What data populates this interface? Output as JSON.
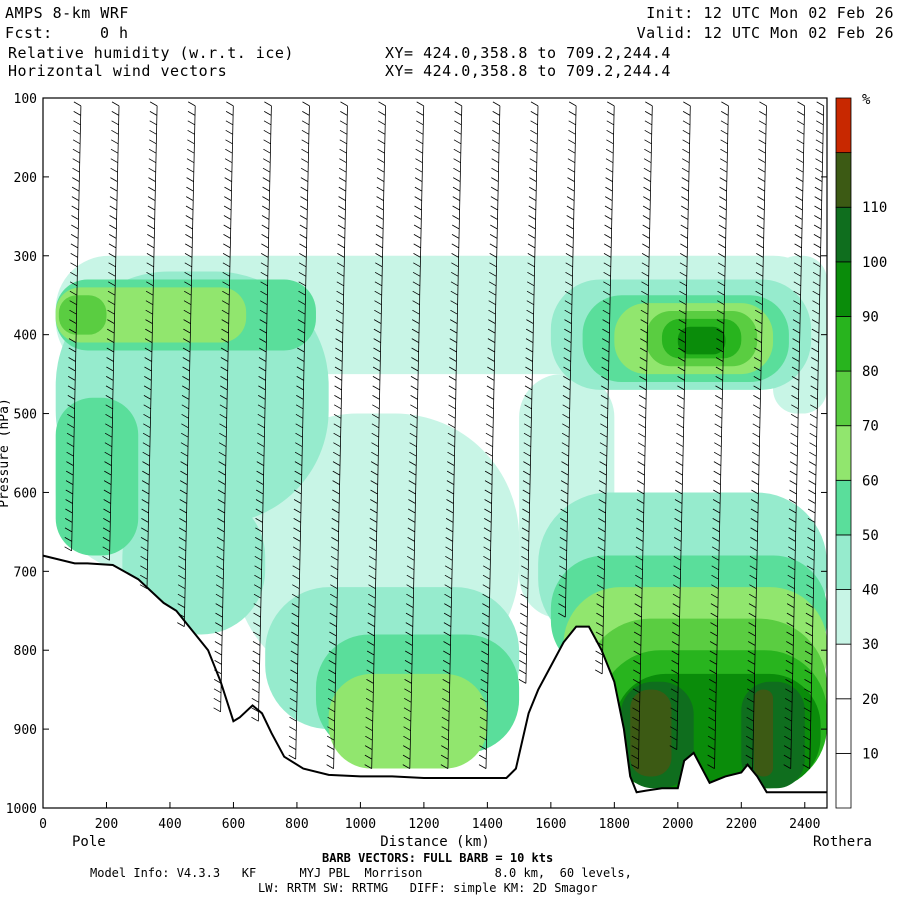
{
  "header": {
    "model": "AMPS 8-km WRF",
    "fcst_label": "Fcst:",
    "fcst_value": "0 h",
    "init": "Init: 12 UTC Mon 02 Feb 26",
    "valid": "Valid: 12 UTC Mon 02 Feb 26",
    "field1": "Relative humidity (w.r.t. ice)",
    "field2": "Horizontal wind vectors",
    "xy1": "XY= 424.0,358.8 to 709.2,244.4",
    "xy2": "XY= 424.0,358.8 to 709.2,244.4"
  },
  "footer": {
    "barb_note": "BARB VECTORS: FULL BARB = 10 kts",
    "model_info": "Model Info: V4.3.3   KF      MYJ PBL  Morrison          8.0 km,  60 levels,",
    "model_info2": "LW: RRTM SW: RRTMG   DIFF: simple KM: 2D Smagor"
  },
  "chart_data": {
    "type": "heatmap",
    "title": "Relative humidity (w.r.t. ice)",
    "xlabel": "Distance (km)",
    "ylabel": "Pressure (hPa)",
    "xlim": [
      0,
      2470
    ],
    "ylim": [
      1000,
      100
    ],
    "x_ticks": [
      "0",
      "200",
      "400",
      "600",
      "800",
      "1000",
      "1200",
      "1400",
      "1600",
      "1800",
      "2000",
      "2200",
      "2400"
    ],
    "y_ticks": [
      "100",
      "200",
      "300",
      "400",
      "500",
      "600",
      "700",
      "800",
      "900",
      "1000"
    ],
    "x_endpoints": {
      "left": "Pole",
      "right": "Rothera"
    },
    "colorbar": {
      "unit": "%",
      "levels": [
        "10",
        "20",
        "30",
        "40",
        "50",
        "60",
        "70",
        "80",
        "90",
        "100",
        "110"
      ],
      "colors": [
        "#ffffff",
        "#ffffff",
        "#ffffff",
        "#c8f5e6",
        "#96ebcd",
        "#5ade9b",
        "#91e66e",
        "#5acd41",
        "#28b41e",
        "#0a8c0a",
        "#0f6e1e",
        "#3c5a14",
        "#c82800"
      ]
    },
    "terrain": [
      [
        0,
        680
      ],
      [
        100,
        690
      ],
      [
        140,
        690
      ],
      [
        220,
        692
      ],
      [
        300,
        710
      ],
      [
        380,
        740
      ],
      [
        420,
        750
      ],
      [
        470,
        775
      ],
      [
        520,
        800
      ],
      [
        560,
        840
      ],
      [
        600,
        890
      ],
      [
        620,
        885
      ],
      [
        660,
        870
      ],
      [
        690,
        880
      ],
      [
        720,
        905
      ],
      [
        760,
        935
      ],
      [
        820,
        950
      ],
      [
        900,
        958
      ],
      [
        1000,
        960
      ],
      [
        1100,
        960
      ],
      [
        1200,
        962
      ],
      [
        1300,
        962
      ],
      [
        1400,
        962
      ],
      [
        1460,
        962
      ],
      [
        1490,
        950
      ],
      [
        1530,
        880
      ],
      [
        1560,
        850
      ],
      [
        1600,
        820
      ],
      [
        1640,
        790
      ],
      [
        1680,
        770
      ],
      [
        1720,
        770
      ],
      [
        1760,
        800
      ],
      [
        1800,
        840
      ],
      [
        1830,
        900
      ],
      [
        1850,
        960
      ],
      [
        1870,
        980
      ],
      [
        1900,
        978
      ],
      [
        1950,
        975
      ],
      [
        2000,
        975
      ],
      [
        2020,
        940
      ],
      [
        2050,
        930
      ],
      [
        2100,
        968
      ],
      [
        2150,
        960
      ],
      [
        2200,
        955
      ],
      [
        2220,
        945
      ],
      [
        2250,
        960
      ],
      [
        2280,
        980
      ],
      [
        2350,
        980
      ],
      [
        2400,
        980
      ],
      [
        2470,
        980
      ]
    ],
    "rh_bands": [
      {
        "level": 30,
        "blobs": [
          [
            40,
            300,
            2470,
            450
          ],
          [
            40,
            450,
            600,
            700
          ],
          [
            600,
            500,
            1500,
            850
          ],
          [
            1500,
            450,
            1800,
            760
          ],
          [
            2300,
            300,
            2470,
            500
          ]
        ]
      },
      {
        "level": 40,
        "blobs": [
          [
            40,
            320,
            900,
            640
          ],
          [
            250,
            600,
            700,
            780
          ],
          [
            700,
            720,
            1500,
            900
          ],
          [
            1600,
            330,
            2420,
            470
          ],
          [
            1560,
            600,
            2470,
            800
          ]
        ]
      },
      {
        "level": 50,
        "blobs": [
          [
            40,
            330,
            860,
            420
          ],
          [
            40,
            480,
            300,
            680
          ],
          [
            860,
            780,
            1500,
            930
          ],
          [
            1600,
            680,
            2470,
            830
          ],
          [
            1700,
            350,
            2350,
            460
          ]
        ]
      },
      {
        "level": 60,
        "blobs": [
          [
            40,
            340,
            640,
            410
          ],
          [
            1800,
            360,
            2300,
            450
          ],
          [
            1640,
            720,
            2470,
            880
          ],
          [
            900,
            830,
            1400,
            950
          ]
        ]
      },
      {
        "level": 70,
        "blobs": [
          [
            50,
            350,
            200,
            400
          ],
          [
            1900,
            370,
            2250,
            440
          ],
          [
            1700,
            760,
            2470,
            950
          ]
        ]
      },
      {
        "level": 80,
        "blobs": [
          [
            1950,
            380,
            2200,
            430
          ],
          [
            1750,
            800,
            2470,
            975
          ]
        ]
      },
      {
        "level": 90,
        "blobs": [
          [
            2000,
            390,
            2150,
            425
          ],
          [
            1800,
            830,
            2450,
            975
          ]
        ]
      },
      {
        "level": 100,
        "blobs": [
          [
            1820,
            840,
            2050,
            975
          ],
          [
            2200,
            840,
            2400,
            975
          ]
        ]
      },
      {
        "level": 110,
        "blobs": [
          [
            1850,
            850,
            1980,
            960
          ],
          [
            2240,
            850,
            2300,
            960
          ]
        ]
      }
    ],
    "wind_columns_km": [
      120,
      240,
      360,
      480,
      600,
      720,
      840,
      960,
      1080,
      1200,
      1320,
      1440,
      1560,
      1680,
      1800,
      1920,
      2040,
      2160,
      2280,
      2400,
      2460
    ]
  }
}
